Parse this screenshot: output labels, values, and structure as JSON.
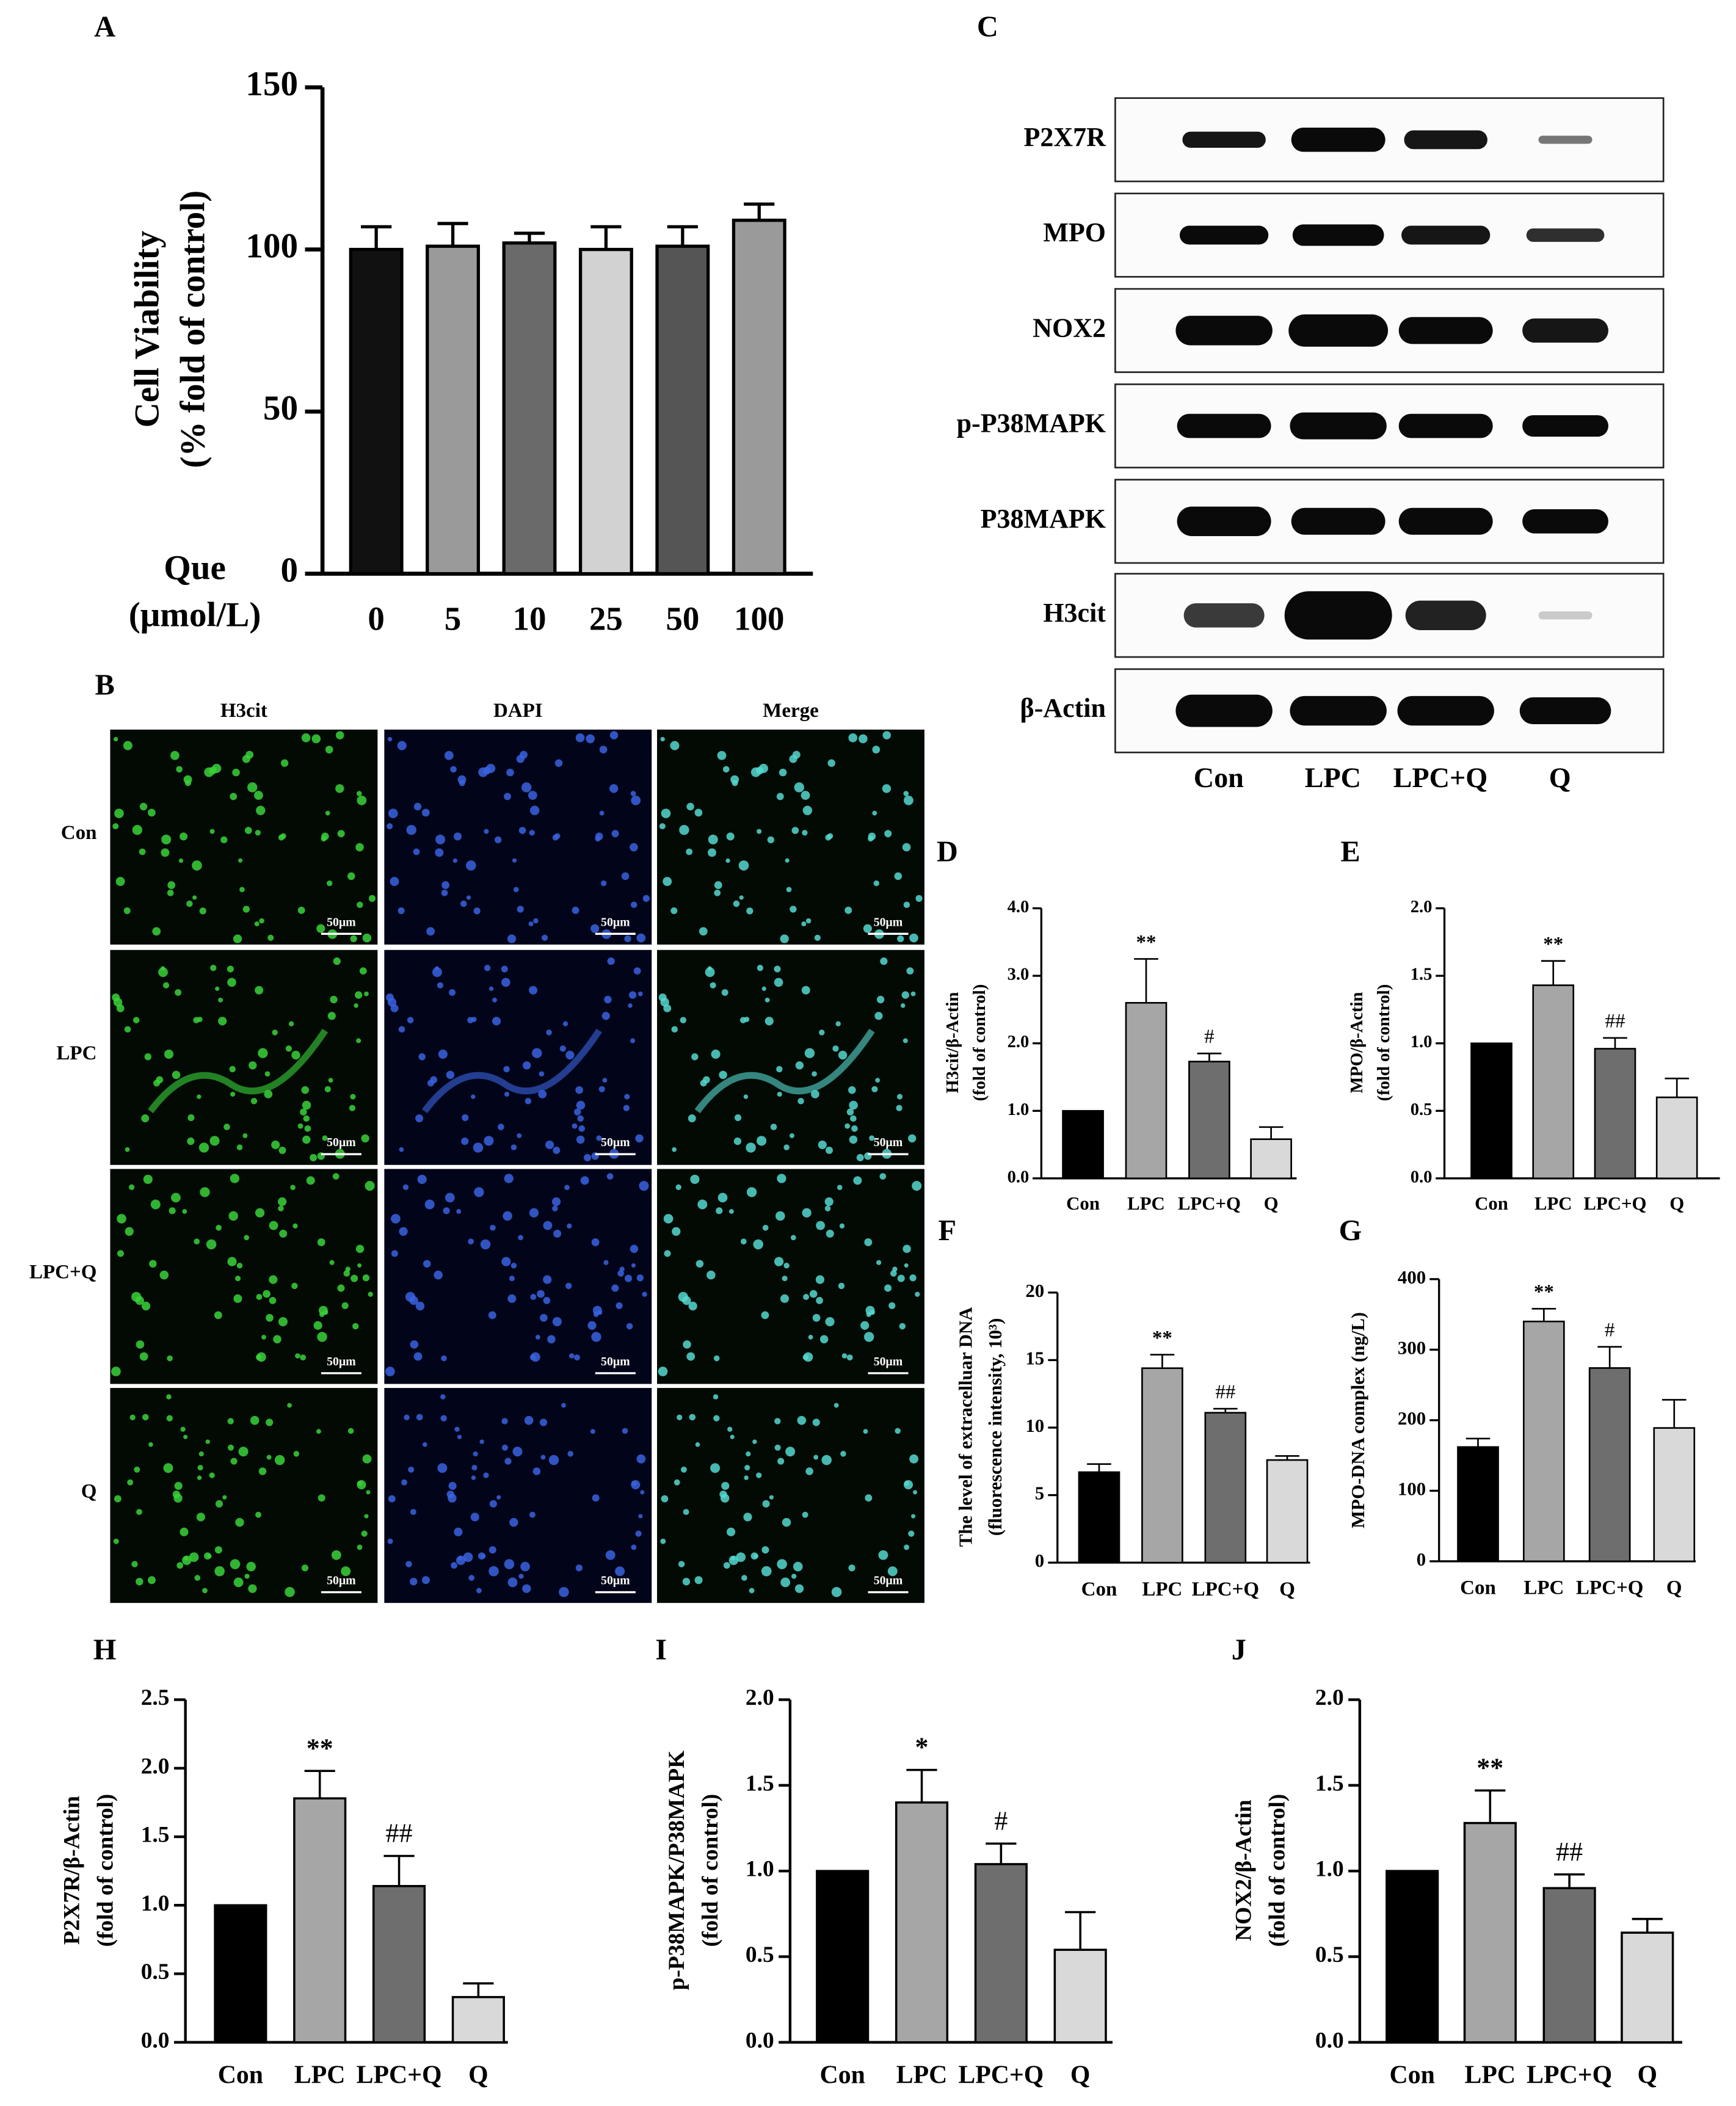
{
  "chart_data": [
    {
      "type": "bar",
      "panel": "A",
      "ylabel": [
        "Cell Viability",
        "(% fold of control)"
      ],
      "xlabel": [
        "Que",
        "(μmol/L)"
      ],
      "categories": [
        "0",
        "5",
        "10",
        "25",
        "50",
        "100"
      ],
      "values": [
        100,
        101,
        102,
        100,
        101,
        109
      ],
      "errors": [
        7,
        7,
        3,
        7,
        6,
        5
      ],
      "colors": [
        "#111111",
        "#9a9a9a",
        "#6a6a6a",
        "#d2d2d2",
        "#555555",
        "#9a9a9a"
      ],
      "ylim": [
        0,
        150
      ],
      "yticks": [
        0,
        50,
        100,
        150
      ]
    },
    {
      "type": "bar",
      "panel": "D",
      "ylabel": [
        "H3cit/β-Actin",
        "(fold of control)"
      ],
      "categories": [
        "Con",
        "LPC",
        "LPC+Q",
        "Q"
      ],
      "values": [
        1.0,
        2.6,
        1.73,
        0.58
      ],
      "errors": [
        null,
        0.65,
        0.12,
        0.18
      ],
      "annotations": [
        null,
        "**",
        "#",
        null
      ],
      "colors": [
        "#000000",
        "#a6a6a6",
        "#6e6e6e",
        "#d9d9d9"
      ],
      "ylim": [
        0,
        4
      ],
      "yticks": [
        {
          "value": 0,
          "label": "0.0"
        },
        {
          "value": 1,
          "label": "1.0"
        },
        {
          "value": 2,
          "label": "2.0"
        },
        {
          "value": 3,
          "label": "3.0"
        },
        {
          "value": 4,
          "label": "4.0"
        }
      ]
    },
    {
      "type": "bar",
      "panel": "E",
      "ylabel": [
        "MPO/β-Actin",
        "(fold of control)"
      ],
      "categories": [
        "Con",
        "LPC",
        "LPC+Q",
        "Q"
      ],
      "values": [
        1.0,
        1.43,
        0.96,
        0.6
      ],
      "errors": [
        null,
        0.18,
        0.08,
        0.14
      ],
      "annotations": [
        null,
        "**",
        "##",
        null
      ],
      "colors": [
        "#000000",
        "#a6a6a6",
        "#6e6e6e",
        "#d9d9d9"
      ],
      "ylim": [
        0,
        2
      ],
      "yticks": [
        {
          "value": 0,
          "label": "0.0"
        },
        {
          "value": 0.5,
          "label": "0.5"
        },
        {
          "value": 1,
          "label": "1.0"
        },
        {
          "value": 1.5,
          "label": "1.5"
        },
        {
          "value": 2,
          "label": "2.0"
        }
      ]
    },
    {
      "type": "bar",
      "panel": "F",
      "ylabel": [
        "The level of extracelluar DNA",
        "(fluorescence intensity, 10³)"
      ],
      "categories": [
        "Con",
        "LPC",
        "LPC+Q",
        "Q"
      ],
      "values": [
        6.7,
        14.4,
        11.1,
        7.6
      ],
      "errors": [
        0.6,
        1.0,
        0.3,
        0.3
      ],
      "annotations": [
        null,
        "**",
        "##",
        null
      ],
      "colors": [
        "#000000",
        "#a6a6a6",
        "#6e6e6e",
        "#d9d9d9"
      ],
      "ylim": [
        0,
        20
      ],
      "yticks": [
        0,
        5,
        10,
        15,
        20
      ]
    },
    {
      "type": "bar",
      "panel": "G",
      "ylabel": [
        "MPO-DNA complex (ng/L)"
      ],
      "categories": [
        "Con",
        "LPC",
        "LPC+Q",
        "Q"
      ],
      "values": [
        162,
        340,
        274,
        189
      ],
      "errors": [
        12,
        18,
        30,
        40
      ],
      "annotations": [
        null,
        "**",
        "#",
        null
      ],
      "colors": [
        "#000000",
        "#a6a6a6",
        "#6e6e6e",
        "#d9d9d9"
      ],
      "ylim": [
        0,
        400
      ],
      "yticks": [
        0,
        100,
        200,
        300,
        400
      ]
    },
    {
      "type": "bar",
      "panel": "H",
      "ylabel": [
        "P2X7R/β-Actin",
        "(fold of control)"
      ],
      "categories": [
        "Con",
        "LPC",
        "LPC+Q",
        "Q"
      ],
      "values": [
        1.0,
        1.78,
        1.14,
        0.33
      ],
      "errors": [
        null,
        0.2,
        0.22,
        0.1
      ],
      "annotations": [
        null,
        "**",
        "##",
        null
      ],
      "colors": [
        "#000000",
        "#a6a6a6",
        "#6e6e6e",
        "#d9d9d9"
      ],
      "ylim": [
        0,
        2.5
      ],
      "yticks": [
        {
          "value": 0,
          "label": "0.0"
        },
        {
          "value": 0.5,
          "label": "0.5"
        },
        {
          "value": 1,
          "label": "1.0"
        },
        {
          "value": 1.5,
          "label": "1.5"
        },
        {
          "value": 2,
          "label": "2.0"
        },
        {
          "value": 2.5,
          "label": "2.5"
        }
      ]
    },
    {
      "type": "bar",
      "panel": "I",
      "ylabel": [
        "p-P38MAPK/P38MAPK",
        "(fold of control)"
      ],
      "categories": [
        "Con",
        "LPC",
        "LPC+Q",
        "Q"
      ],
      "values": [
        1.0,
        1.4,
        1.04,
        0.54
      ],
      "errors": [
        null,
        0.19,
        0.12,
        0.22
      ],
      "annotations": [
        null,
        "*",
        "#",
        null
      ],
      "colors": [
        "#000000",
        "#a6a6a6",
        "#6e6e6e",
        "#d9d9d9"
      ],
      "ylim": [
        0,
        2
      ],
      "yticks": [
        {
          "value": 0,
          "label": "0.0"
        },
        {
          "value": 0.5,
          "label": "0.5"
        },
        {
          "value": 1,
          "label": "1.0"
        },
        {
          "value": 1.5,
          "label": "1.5"
        },
        {
          "value": 2,
          "label": "2.0"
        }
      ]
    },
    {
      "type": "bar",
      "panel": "J",
      "ylabel": [
        "NOX2/β-Actin",
        "(fold of control)"
      ],
      "categories": [
        "Con",
        "LPC",
        "LPC+Q",
        "Q"
      ],
      "values": [
        1.0,
        1.28,
        0.9,
        0.64
      ],
      "errors": [
        null,
        0.19,
        0.08,
        0.08
      ],
      "annotations": [
        null,
        "**",
        "##",
        null
      ],
      "colors": [
        "#000000",
        "#a6a6a6",
        "#6e6e6e",
        "#d9d9d9"
      ],
      "ylim": [
        0,
        2
      ],
      "yticks": [
        {
          "value": 0,
          "label": "0.0"
        },
        {
          "value": 0.5,
          "label": "0.5"
        },
        {
          "value": 1,
          "label": "1.0"
        },
        {
          "value": 1.5,
          "label": "1.5"
        },
        {
          "value": 2,
          "label": "2.0"
        }
      ]
    }
  ],
  "microscopy": {
    "panel": "B",
    "channels": [
      "H3cit",
      "DAPI",
      "Merge"
    ],
    "groups": [
      "Con",
      "LPC",
      "LPC+Q",
      "Q"
    ],
    "scale_bar": "50μm"
  },
  "blot": {
    "panel": "C",
    "proteins": [
      "P2X7R",
      "MPO",
      "NOX2",
      "p-P38MAPK",
      "P38MAPK",
      "H3cit",
      "β-Actin"
    ],
    "lanes": [
      "Con",
      "LPC",
      "LPC+Q",
      "Q"
    ]
  }
}
